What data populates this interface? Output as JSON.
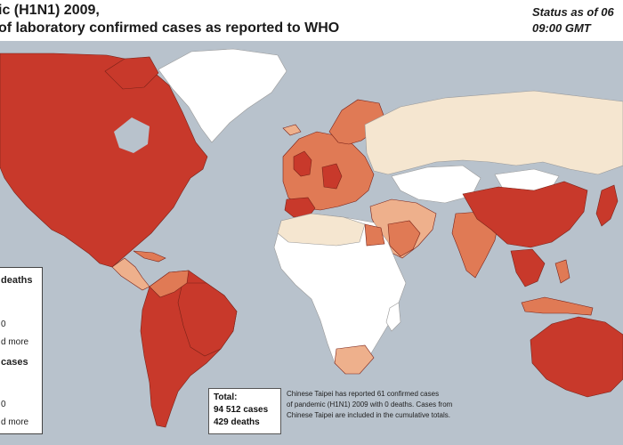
{
  "header": {
    "title_line1": "ic (H1N1) 2009,",
    "title_line2": "of  laboratory confirmed cases as reported to WHO",
    "status_line1": "Status as of 06",
    "status_line2": "09:00 GMT"
  },
  "legend": {
    "deaths_heading": "deaths",
    "deaths_items": [
      "0",
      "d more"
    ],
    "cases_heading": "cases",
    "cases_items": [
      "0",
      "d more"
    ]
  },
  "totals": {
    "label": "Total:",
    "cases": "94 512 cases",
    "deaths": "429 deaths"
  },
  "note": {
    "line1": "Chinese Taipei has reported 61 confirmed cases",
    "line2": "of pandemic (H1N1) 2009 with 0 deaths. Cases from",
    "line3": "Chinese Taipei are included in the cumulative totals."
  },
  "colors": {
    "ocean": "#b8c2cc",
    "no_cases": "#ffffff",
    "level_low": "#f5e6d0",
    "level_mid": "#eeb08c",
    "level_high": "#e07a55",
    "level_max": "#c8392b",
    "death_marker": "#f5b8a8"
  }
}
